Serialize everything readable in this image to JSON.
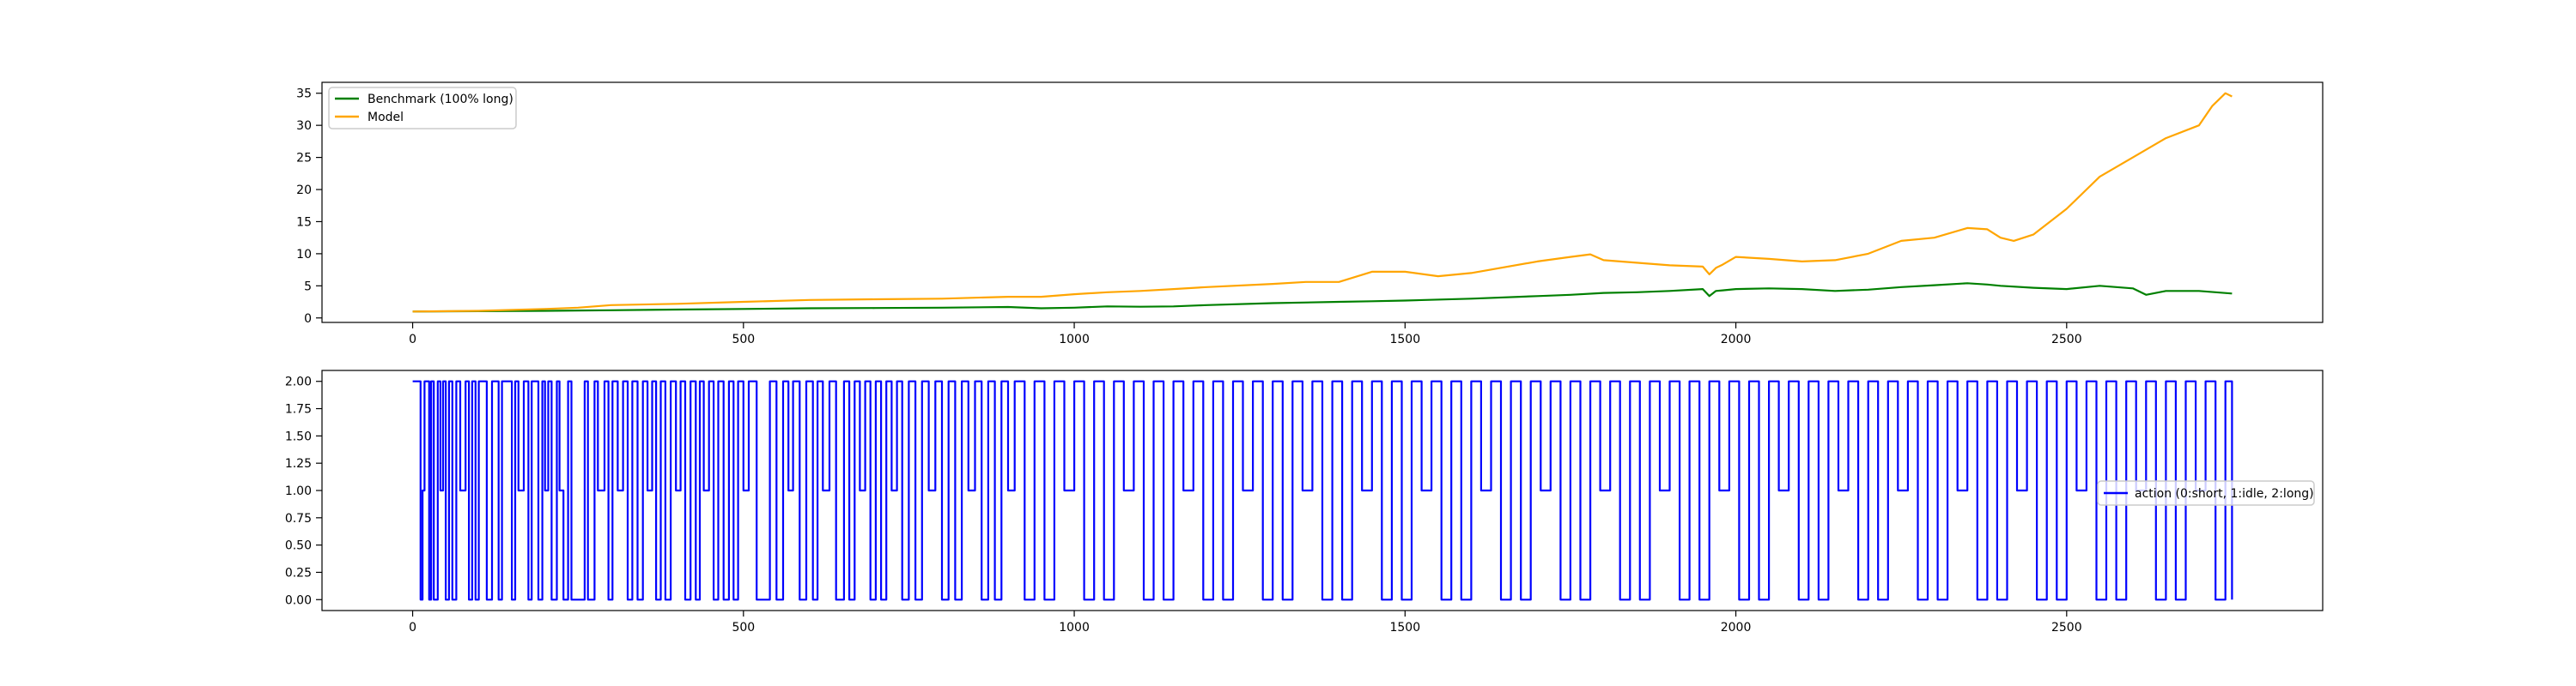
{
  "chart_data": [
    {
      "type": "line",
      "title": "",
      "xlabel": "",
      "ylabel": "",
      "xlim": [
        -137,
        2887
      ],
      "ylim": [
        -0.7,
        36.7
      ],
      "grid": false,
      "legend_position": "upper-left",
      "xticks": [
        0,
        500,
        1000,
        1500,
        2000,
        2500
      ],
      "yticks": [
        0,
        5,
        10,
        15,
        20,
        25,
        30,
        35
      ],
      "series": [
        {
          "name": "Benchmark (100% long)",
          "color": "#008000",
          "x": [
            0,
            100,
            200,
            250,
            300,
            400,
            500,
            600,
            700,
            800,
            900,
            950,
            1000,
            1050,
            1100,
            1150,
            1200,
            1300,
            1400,
            1450,
            1500,
            1600,
            1700,
            1750,
            1800,
            1850,
            1900,
            1950,
            1960,
            1970,
            1980,
            2000,
            2050,
            2100,
            2150,
            2200,
            2250,
            2300,
            2350,
            2380,
            2400,
            2450,
            2500,
            2550,
            2600,
            2620,
            2650,
            2700,
            2750
          ],
          "y": [
            1.0,
            1.05,
            1.1,
            1.15,
            1.2,
            1.3,
            1.4,
            1.5,
            1.55,
            1.6,
            1.7,
            1.5,
            1.6,
            1.8,
            1.75,
            1.8,
            2.0,
            2.3,
            2.5,
            2.6,
            2.7,
            3.0,
            3.4,
            3.6,
            3.9,
            4.0,
            4.2,
            4.5,
            3.4,
            4.2,
            4.3,
            4.5,
            4.6,
            4.5,
            4.2,
            4.4,
            4.8,
            5.1,
            5.4,
            5.2,
            5.0,
            4.7,
            4.5,
            5.0,
            4.6,
            3.6,
            4.2,
            4.2,
            3.8
          ]
        },
        {
          "name": "Model",
          "color": "#ffa500",
          "x": [
            0,
            100,
            200,
            250,
            300,
            400,
            500,
            600,
            700,
            800,
            900,
            950,
            1000,
            1050,
            1100,
            1150,
            1200,
            1300,
            1350,
            1400,
            1450,
            1500,
            1550,
            1600,
            1700,
            1750,
            1780,
            1800,
            1850,
            1900,
            1950,
            1960,
            1970,
            1980,
            2000,
            2050,
            2100,
            2150,
            2200,
            2250,
            2300,
            2350,
            2380,
            2400,
            2420,
            2450,
            2500,
            2550,
            2600,
            2650,
            2700,
            2720,
            2740,
            2750
          ],
          "y": [
            1.0,
            1.1,
            1.4,
            1.6,
            2.0,
            2.2,
            2.5,
            2.8,
            2.9,
            3.0,
            3.3,
            3.3,
            3.7,
            4.0,
            4.2,
            4.5,
            4.8,
            5.3,
            5.6,
            5.6,
            7.2,
            7.2,
            6.5,
            7.0,
            8.8,
            9.5,
            9.9,
            9.0,
            8.6,
            8.2,
            8.0,
            6.8,
            7.8,
            8.3,
            9.5,
            9.2,
            8.8,
            9.0,
            10.0,
            12.0,
            12.5,
            14.0,
            13.8,
            12.5,
            12.0,
            13.0,
            17.0,
            22.0,
            25.0,
            28.0,
            30.0,
            33.0,
            35.0,
            34.5
          ]
        }
      ]
    },
    {
      "type": "line",
      "title": "",
      "xlabel": "",
      "ylabel": "",
      "xlim": [
        -137,
        2887
      ],
      "ylim": [
        -0.1,
        2.1
      ],
      "grid": false,
      "legend_position": "center-right",
      "xticks": [
        0,
        500,
        1000,
        1500,
        2000,
        2500
      ],
      "yticks": [
        0.0,
        0.25,
        0.5,
        0.75,
        1.0,
        1.25,
        1.5,
        1.75,
        2.0
      ],
      "ytick_labels": [
        "0.00",
        "0.25",
        "0.50",
        "0.75",
        "1.00",
        "1.25",
        "1.50",
        "1.75",
        "2.00"
      ],
      "series": [
        {
          "name": "action (0:short, 1:idle, 2:long)",
          "color": "#0000ff",
          "step": true,
          "x": [
            0,
            12,
            15,
            18,
            25,
            28,
            32,
            38,
            42,
            46,
            50,
            55,
            60,
            66,
            72,
            80,
            85,
            90,
            95,
            100,
            108,
            112,
            120,
            130,
            135,
            150,
            155,
            160,
            168,
            175,
            180,
            190,
            196,
            200,
            205,
            210,
            218,
            222,
            228,
            235,
            240,
            260,
            265,
            275,
            280,
            290,
            296,
            302,
            310,
            318,
            325,
            332,
            340,
            348,
            355,
            362,
            368,
            375,
            382,
            390,
            398,
            405,
            412,
            420,
            428,
            434,
            440,
            448,
            455,
            462,
            470,
            478,
            485,
            492,
            500,
            508,
            520,
            540,
            550,
            560,
            568,
            575,
            585,
            595,
            605,
            612,
            620,
            630,
            640,
            652,
            660,
            668,
            676,
            684,
            692,
            700,
            708,
            716,
            724,
            732,
            740,
            750,
            760,
            770,
            780,
            790,
            800,
            810,
            820,
            830,
            840,
            850,
            860,
            870,
            880,
            890,
            900,
            910,
            925,
            940,
            955,
            970,
            985,
            1000,
            1015,
            1030,
            1045,
            1060,
            1075,
            1090,
            1105,
            1120,
            1135,
            1150,
            1165,
            1180,
            1195,
            1210,
            1225,
            1240,
            1255,
            1270,
            1285,
            1300,
            1315,
            1330,
            1345,
            1360,
            1375,
            1390,
            1405,
            1420,
            1435,
            1450,
            1465,
            1480,
            1495,
            1510,
            1525,
            1540,
            1555,
            1570,
            1585,
            1600,
            1615,
            1630,
            1645,
            1660,
            1675,
            1690,
            1705,
            1720,
            1735,
            1750,
            1765,
            1780,
            1795,
            1810,
            1825,
            1840,
            1855,
            1870,
            1885,
            1900,
            1915,
            1930,
            1945,
            1960,
            1975,
            1990,
            2005,
            2020,
            2035,
            2050,
            2065,
            2080,
            2095,
            2110,
            2125,
            2140,
            2155,
            2170,
            2185,
            2200,
            2215,
            2230,
            2245,
            2260,
            2275,
            2290,
            2305,
            2320,
            2335,
            2350,
            2365,
            2380,
            2395,
            2410,
            2425,
            2440,
            2455,
            2470,
            2485,
            2500,
            2515,
            2530,
            2545,
            2560,
            2575,
            2590,
            2605,
            2620,
            2635,
            2650,
            2665,
            2680,
            2695,
            2710,
            2725,
            2740,
            2750
          ],
          "y": [
            2,
            0,
            1,
            2,
            0,
            2,
            0,
            2,
            1,
            2,
            0,
            2,
            0,
            2,
            1,
            2,
            0,
            2,
            0,
            2,
            2,
            0,
            2,
            0,
            2,
            0,
            2,
            1,
            2,
            0,
            2,
            0,
            2,
            1,
            2,
            0,
            2,
            1,
            0,
            2,
            0,
            2,
            0,
            2,
            1,
            2,
            0,
            2,
            1,
            2,
            0,
            2,
            0,
            2,
            1,
            2,
            0,
            2,
            0,
            2,
            1,
            2,
            0,
            2,
            0,
            2,
            1,
            2,
            0,
            2,
            0,
            2,
            0,
            2,
            1,
            2,
            0,
            2,
            0,
            2,
            1,
            2,
            0,
            2,
            0,
            2,
            1,
            2,
            0,
            2,
            0,
            2,
            1,
            2,
            0,
            2,
            0,
            2,
            1,
            2,
            0,
            2,
            0,
            2,
            1,
            2,
            0,
            2,
            0,
            2,
            1,
            2,
            0,
            2,
            0,
            2,
            1,
            2,
            0,
            2,
            0,
            2,
            1,
            2,
            0,
            2,
            0,
            2,
            1,
            2,
            0,
            2,
            0,
            2,
            1,
            2,
            0,
            2,
            0,
            2,
            1,
            2,
            0,
            2,
            0,
            2,
            1,
            2,
            0,
            2,
            0,
            2,
            1,
            2,
            0,
            2,
            0,
            2,
            1,
            2,
            0,
            2,
            0,
            2,
            1,
            2,
            0,
            2,
            0,
            2,
            1,
            2,
            0,
            2,
            0,
            2,
            1,
            2,
            0,
            2,
            0,
            2,
            1,
            2,
            0,
            2,
            0,
            2,
            1,
            2,
            0,
            2,
            0,
            2,
            1,
            2,
            0,
            2,
            0,
            2,
            1,
            2,
            0,
            2,
            0,
            2,
            1,
            2,
            0,
            2,
            0,
            2,
            1,
            2,
            0,
            2,
            0,
            2,
            1,
            2,
            0,
            2,
            0,
            2,
            1,
            2,
            0,
            2,
            0,
            2,
            1,
            2,
            0,
            2,
            0,
            2,
            1,
            2,
            0,
            2,
            0
          ]
        }
      ]
    }
  ]
}
